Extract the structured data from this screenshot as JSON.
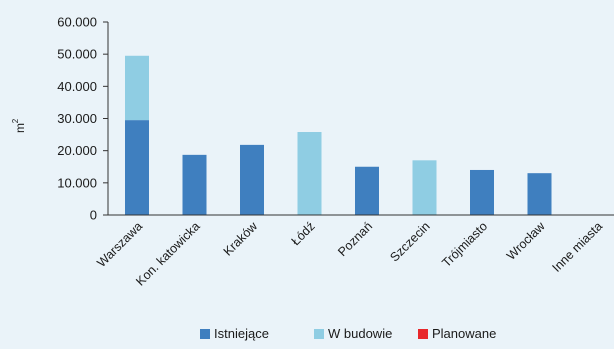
{
  "chart_data": {
    "type": "bar",
    "stacked": true,
    "categories": [
      "Warszawa",
      "Kon. katowicka",
      "Kraków",
      "Łódź",
      "Poznań",
      "Szczecin",
      "Trójmiasto",
      "Wrocław",
      "Inne miasta"
    ],
    "series": [
      {
        "name": "Istniejące",
        "color": "#3f7fbf",
        "values": [
          29500,
          18700,
          21800,
          0,
          15000,
          0,
          14000,
          13000,
          0
        ]
      },
      {
        "name": "W budowie",
        "color": "#8fcde3",
        "values": [
          20000,
          0,
          0,
          25800,
          0,
          17000,
          0,
          0,
          0
        ]
      },
      {
        "name": "Planowane",
        "color": "#e8272b",
        "values": [
          0,
          0,
          0,
          0,
          0,
          0,
          0,
          0,
          0
        ]
      }
    ],
    "ylabel": "m",
    "ylabel_superscript": "2",
    "ylim": [
      0,
      60000
    ],
    "yticks": [
      0,
      10000,
      20000,
      30000,
      40000,
      50000,
      60000
    ],
    "ytick_labels": [
      "0",
      "10.000",
      "20.000",
      "30.000",
      "40.000",
      "50.000",
      "60.000"
    ],
    "grid": false,
    "legend_position": "bottom"
  }
}
